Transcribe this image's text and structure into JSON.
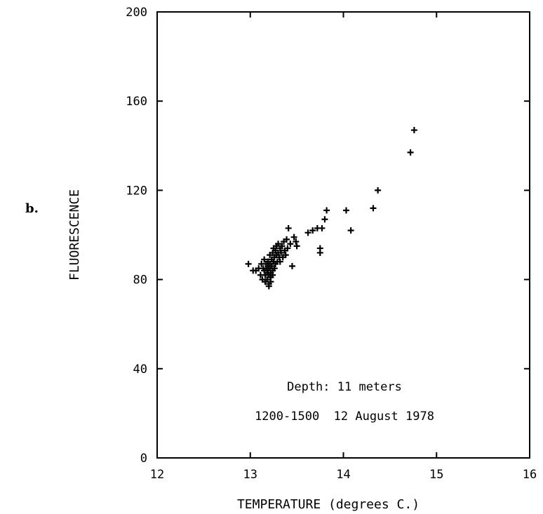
{
  "panel_label": "b.",
  "chart_data": {
    "type": "scatter",
    "title": "",
    "xlabel": "TEMPERATURE (degrees C.)",
    "ylabel": "FLUORESCENCE",
    "xlim": [
      12,
      16
    ],
    "ylim": [
      0,
      200
    ],
    "x_ticks": [
      "12",
      "13",
      "14",
      "15",
      "16"
    ],
    "y_ticks": [
      "0",
      "40",
      "80",
      "120",
      "160",
      "200"
    ],
    "grid": false,
    "annotations": [
      "Depth: 11 meters",
      "1200-1500  12 August 1978"
    ],
    "points": [
      [
        12.98,
        87
      ],
      [
        13.03,
        84
      ],
      [
        13.06,
        84
      ],
      [
        13.09,
        85
      ],
      [
        13.11,
        82
      ],
      [
        13.12,
        87
      ],
      [
        13.13,
        80
      ],
      [
        13.14,
        85
      ],
      [
        13.15,
        89
      ],
      [
        13.15,
        84
      ],
      [
        13.16,
        82
      ],
      [
        13.16,
        79
      ],
      [
        13.17,
        87
      ],
      [
        13.17,
        85
      ],
      [
        13.18,
        83
      ],
      [
        13.18,
        80
      ],
      [
        13.19,
        88
      ],
      [
        13.19,
        86
      ],
      [
        13.19,
        84
      ],
      [
        13.2,
        82
      ],
      [
        13.2,
        78
      ],
      [
        13.2,
        77
      ],
      [
        13.21,
        91
      ],
      [
        13.21,
        87
      ],
      [
        13.21,
        85
      ],
      [
        13.22,
        83
      ],
      [
        13.22,
        81
      ],
      [
        13.22,
        79
      ],
      [
        13.23,
        89
      ],
      [
        13.23,
        86
      ],
      [
        13.24,
        92
      ],
      [
        13.24,
        84
      ],
      [
        13.24,
        82
      ],
      [
        13.25,
        88
      ],
      [
        13.25,
        94
      ],
      [
        13.26,
        90
      ],
      [
        13.26,
        85
      ],
      [
        13.27,
        87
      ],
      [
        13.27,
        93
      ],
      [
        13.28,
        91
      ],
      [
        13.28,
        95
      ],
      [
        13.29,
        88
      ],
      [
        13.3,
        92
      ],
      [
        13.3,
        96
      ],
      [
        13.31,
        90
      ],
      [
        13.32,
        94
      ],
      [
        13.32,
        88
      ],
      [
        13.33,
        92
      ],
      [
        13.34,
        95
      ],
      [
        13.35,
        90
      ],
      [
        13.36,
        97
      ],
      [
        13.37,
        93
      ],
      [
        13.38,
        91
      ],
      [
        13.39,
        98
      ],
      [
        13.4,
        94
      ],
      [
        13.41,
        103
      ],
      [
        13.43,
        96
      ],
      [
        13.45,
        86
      ],
      [
        13.47,
        99
      ],
      [
        13.49,
        97
      ],
      [
        13.5,
        95
      ],
      [
        13.62,
        101
      ],
      [
        13.67,
        102
      ],
      [
        13.72,
        103
      ],
      [
        13.75,
        94
      ],
      [
        13.75,
        92
      ],
      [
        13.77,
        103
      ],
      [
        13.8,
        107
      ],
      [
        13.82,
        111
      ],
      [
        14.03,
        111
      ],
      [
        14.08,
        102
      ],
      [
        14.32,
        112
      ],
      [
        14.37,
        120
      ],
      [
        14.72,
        137
      ],
      [
        14.76,
        147
      ]
    ]
  }
}
